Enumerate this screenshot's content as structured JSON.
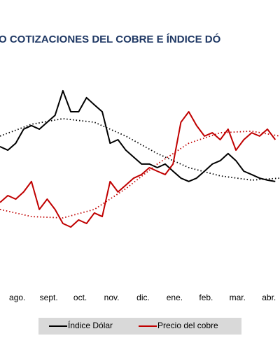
{
  "chart_data": {
    "type": "line",
    "title": "O COTIZACIONES DEL COBRE E ÍNDICE DÓ",
    "x": [
      -0.55,
      -0.3,
      -0.05,
      0.2,
      0.45,
      0.7,
      0.95,
      1.2,
      1.45,
      1.7,
      1.95,
      2.2,
      2.45,
      2.7,
      2.95,
      3.2,
      3.45,
      3.7,
      3.95,
      4.2,
      4.45,
      4.7,
      4.95,
      5.2,
      5.45,
      5.7,
      5.95,
      6.2,
      6.45,
      6.7,
      6.95,
      7.2,
      7.45,
      7.7,
      7.95,
      8.2
    ],
    "xlim": [
      -0.55,
      8.35
    ],
    "xticks": [
      {
        "value": 0,
        "label": "ago."
      },
      {
        "value": 1,
        "label": "sept."
      },
      {
        "value": 2,
        "label": "oct."
      },
      {
        "value": 3,
        "label": "nov."
      },
      {
        "value": 4,
        "label": "dic."
      },
      {
        "value": 5,
        "label": "ene."
      },
      {
        "value": 6,
        "label": "feb."
      },
      {
        "value": 7,
        "label": "mar."
      },
      {
        "value": 8,
        "label": "abr."
      }
    ],
    "ylim": [
      0,
      100
    ],
    "series": [
      {
        "name": "Índice Dólar",
        "color": "#000000",
        "values": [
          59.4,
          57.8,
          60.9,
          67.2,
          68.8,
          67.2,
          70.3,
          73.4,
          84.4,
          75,
          75,
          81.3,
          78.1,
          75,
          60.9,
          62.5,
          57.8,
          54.7,
          51.6,
          51.6,
          50,
          51.6,
          48.4,
          45.3,
          43.8,
          45.3,
          48.4,
          51.6,
          53.1,
          56.3,
          53.1,
          48.4,
          46.9,
          45.3,
          44.4,
          43.8
        ]
      },
      {
        "name": "Precio del cobre",
        "color": "#c00000",
        "values": [
          34.4,
          37.5,
          35.9,
          39.1,
          43.8,
          31.3,
          35.9,
          31.3,
          25,
          23.4,
          26.6,
          25,
          29.7,
          28.1,
          43.8,
          39.1,
          42.2,
          45.3,
          46.9,
          50,
          48.4,
          46.9,
          51.6,
          70.3,
          75,
          68.8,
          64.1,
          65.6,
          62.5,
          67.2,
          57.8,
          62.5,
          65.6,
          64.1,
          67.2,
          62.5
        ]
      }
    ],
    "trends": [
      {
        "color": "#000000",
        "x": [
          -0.55,
          0.45,
          1.45,
          2.45,
          3.45,
          4.45,
          5.45,
          6.45,
          7.45,
          8.35
        ],
        "values": [
          64.1,
          69.4,
          71.9,
          70.3,
          64.1,
          56.3,
          50,
          46.3,
          44.4,
          45.3
        ]
      },
      {
        "color": "#c00000",
        "x": [
          -0.55,
          0.45,
          1.45,
          2.45,
          3.45,
          4.45,
          5.45,
          6.45,
          7.45,
          8.35
        ],
        "values": [
          31.3,
          28.1,
          27.5,
          31.3,
          40.6,
          51.6,
          60.9,
          65.6,
          66.3,
          64.1
        ]
      }
    ]
  }
}
